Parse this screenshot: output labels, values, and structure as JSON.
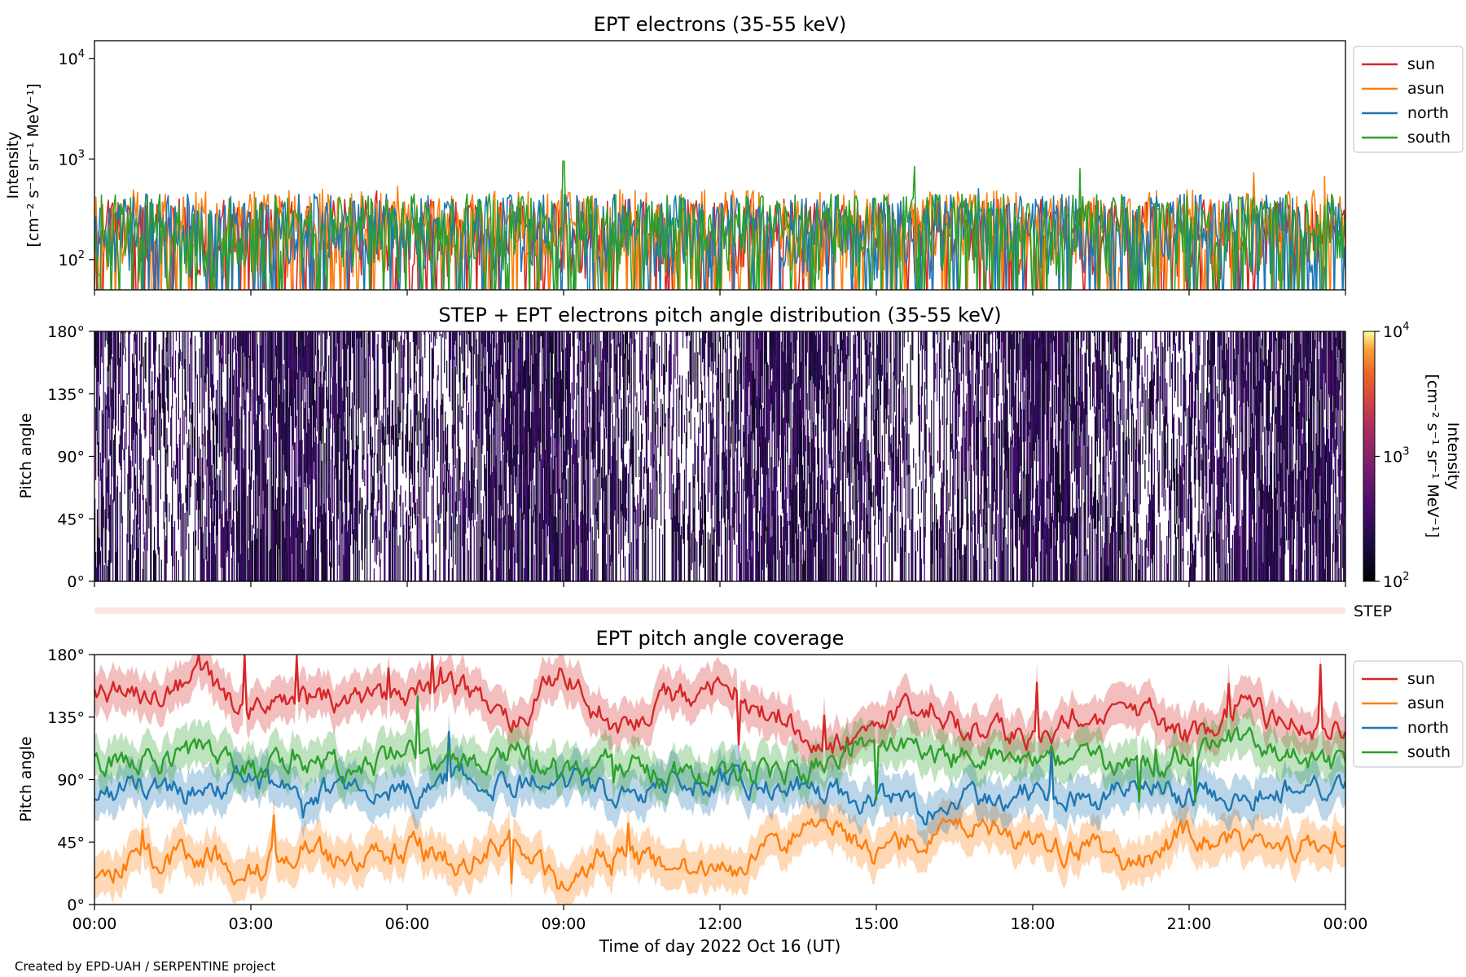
{
  "figure": {
    "footer": "Created by EPD-UAH / SERPENTINE project",
    "x_axis_label": "Time of day 2022 Oct 16 (UT)",
    "x_ticks": [
      "00:00",
      "03:00",
      "06:00",
      "09:00",
      "12:00",
      "15:00",
      "18:00",
      "21:00",
      "00:00"
    ]
  },
  "chart_data": [
    {
      "type": "line",
      "title": "EPT electrons (35-55 keV)",
      "ylabel": "Intensity",
      "ylabel_units": "[cm⁻² s⁻¹ sr⁻¹ MeV⁻¹]",
      "y_scale": "log",
      "ylim": [
        50,
        15000
      ],
      "y_ticks": [
        {
          "value": 100,
          "base": "10",
          "exp": "2"
        },
        {
          "value": 1000,
          "base": "10",
          "exp": "3"
        },
        {
          "value": 10000,
          "base": "10",
          "exp": "4"
        }
      ],
      "x_range_hours": [
        0,
        24
      ],
      "legend_position": "outside-right",
      "series": [
        {
          "name": "sun",
          "color": "#d62728",
          "typical_range": [
            60,
            400
          ],
          "peak": 500
        },
        {
          "name": "asun",
          "color": "#ff7f0e",
          "typical_range": [
            60,
            500
          ],
          "peak": 750
        },
        {
          "name": "north",
          "color": "#1f77b4",
          "typical_range": [
            60,
            450
          ],
          "peak": 700
        },
        {
          "name": "south",
          "color": "#2ca02c",
          "typical_range": [
            60,
            450
          ],
          "peak": 950,
          "peak_hour": 9.0
        }
      ]
    },
    {
      "type": "heatmap",
      "title": "STEP + EPT electrons pitch angle distribution (35-55 keV)",
      "ylabel": "Pitch angle",
      "ylim": [
        0,
        180
      ],
      "y_ticks": [
        "0°",
        "45°",
        "90°",
        "135°",
        "180°"
      ],
      "x_range_hours": [
        0,
        24
      ],
      "colorbar": {
        "label": "Intensity",
        "units": "[cm⁻² s⁻¹ sr⁻¹ MeV⁻¹]",
        "scale": "log",
        "range": [
          100,
          10000
        ],
        "colormap": "inferno",
        "ticks": [
          {
            "value": 100,
            "base": "10",
            "exp": "2"
          },
          {
            "value": 1000,
            "base": "10",
            "exp": "3"
          },
          {
            "value": 10000,
            "base": "10",
            "exp": "4"
          }
        ]
      },
      "typical_intensity": [
        100,
        300
      ]
    },
    {
      "type": "bar",
      "label": "STEP",
      "color": "#fde8e0",
      "x_range_hours": [
        0,
        24
      ]
    },
    {
      "type": "line",
      "title": "EPT pitch angle coverage",
      "ylabel": "Pitch angle",
      "ylim": [
        0,
        180
      ],
      "y_ticks": [
        "0°",
        "45°",
        "90°",
        "135°",
        "180°"
      ],
      "x_range_hours": [
        0,
        24
      ],
      "legend_position": "outside-right",
      "band_halfwidth_deg": 15,
      "series": [
        {
          "name": "sun",
          "color": "#d62728",
          "x": [
            0,
            1,
            2,
            3,
            4,
            5,
            6,
            7,
            8,
            9,
            10,
            11,
            12,
            13,
            14,
            15,
            16,
            17,
            18,
            19,
            20,
            21,
            22,
            23,
            24
          ],
          "y": [
            155,
            148,
            160,
            140,
            150,
            145,
            150,
            155,
            135,
            165,
            120,
            150,
            158,
            140,
            110,
            130,
            145,
            125,
            120,
            135,
            140,
            120,
            140,
            130,
            130
          ]
        },
        {
          "name": "asun",
          "color": "#ff7f0e",
          "x": [
            0,
            1,
            2,
            3,
            4,
            5,
            6,
            7,
            8,
            9,
            10,
            11,
            12,
            13,
            14,
            15,
            16,
            17,
            18,
            19,
            20,
            21,
            22,
            23,
            24
          ],
          "y": [
            25,
            30,
            35,
            25,
            40,
            30,
            40,
            30,
            45,
            15,
            40,
            25,
            20,
            45,
            60,
            35,
            50,
            55,
            45,
            40,
            35,
            50,
            45,
            40,
            50
          ]
        },
        {
          "name": "north",
          "color": "#1f77b4",
          "x": [
            0,
            1,
            2,
            3,
            4,
            5,
            6,
            7,
            8,
            9,
            10,
            11,
            12,
            13,
            14,
            15,
            16,
            17,
            18,
            19,
            20,
            21,
            22,
            23,
            24
          ],
          "y": [
            80,
            85,
            80,
            90,
            75,
            85,
            80,
            95,
            85,
            90,
            80,
            85,
            90,
            85,
            80,
            75,
            70,
            75,
            80,
            75,
            85,
            80,
            75,
            85,
            90
          ]
        },
        {
          "name": "south",
          "color": "#2ca02c",
          "x": [
            0,
            1,
            2,
            3,
            4,
            5,
            6,
            7,
            8,
            9,
            10,
            11,
            12,
            13,
            14,
            15,
            16,
            17,
            18,
            19,
            20,
            21,
            22,
            23,
            24
          ],
          "y": [
            100,
            105,
            110,
            95,
            100,
            95,
            110,
            100,
            110,
            100,
            100,
            95,
            90,
            95,
            100,
            120,
            110,
            105,
            110,
            100,
            95,
            110,
            120,
            105,
            100
          ]
        }
      ]
    }
  ]
}
